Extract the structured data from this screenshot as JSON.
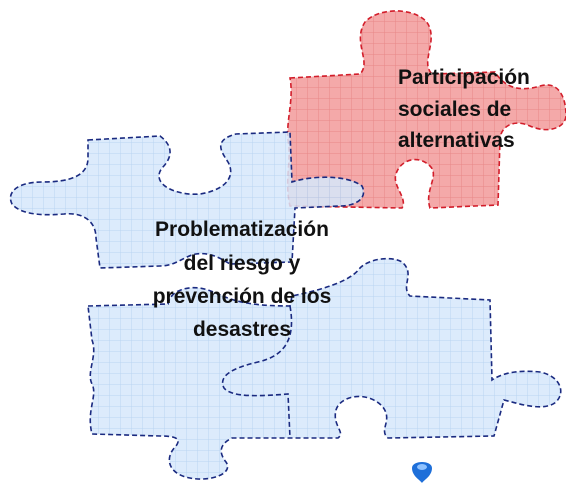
{
  "pieces": [
    {
      "lines": [
        "Participación",
        "sociales de",
        "alternativas"
      ]
    },
    {
      "lines": [
        "Problematización",
        "del riesgo y",
        "prevención de los",
        "desastres"
      ]
    }
  ]
}
